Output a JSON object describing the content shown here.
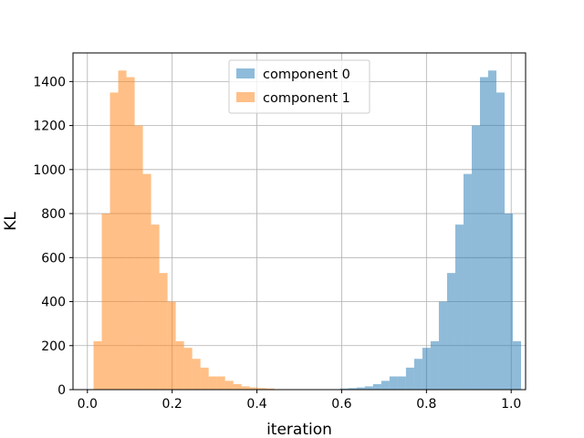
{
  "chart_data": {
    "type": "bar",
    "xlabel": "iteration",
    "ylabel": "KL",
    "xlim": [
      -0.034,
      1.034
    ],
    "ylim": [
      0,
      1530
    ],
    "xticks": [
      0.0,
      0.2,
      0.4,
      0.6,
      0.8,
      1.0
    ],
    "xtick_labels": [
      "0.0",
      "0.2",
      "0.4",
      "0.6",
      "0.8",
      "1.0"
    ],
    "yticks": [
      0,
      200,
      400,
      600,
      800,
      1000,
      1200,
      1400
    ],
    "ytick_labels": [
      "0",
      "200",
      "400",
      "600",
      "800",
      "1000",
      "1200",
      "1400"
    ],
    "grid": true,
    "legend_position": "top-center",
    "bin_start": 0.0145,
    "bin_width": 0.0194,
    "series": [
      {
        "name": "component 0",
        "color": "#1f77b4",
        "alpha": 0.5,
        "values": [
          0,
          0,
          0,
          0,
          0,
          0,
          0,
          0,
          0,
          0,
          0,
          0,
          0,
          0,
          0,
          0,
          0,
          0,
          0,
          0,
          0,
          0,
          0,
          0,
          0,
          0,
          0,
          0,
          0,
          2,
          5,
          7,
          10,
          15,
          25,
          40,
          60,
          60,
          100,
          140,
          190,
          220,
          400,
          530,
          750,
          980,
          1200,
          1420,
          1450,
          1350,
          800,
          220
        ]
      },
      {
        "name": "component 1",
        "color": "#ff7f0e",
        "alpha": 0.5,
        "values": [
          220,
          800,
          1350,
          1450,
          1420,
          1200,
          980,
          750,
          530,
          400,
          220,
          190,
          140,
          100,
          60,
          60,
          40,
          25,
          15,
          10,
          7,
          5,
          2,
          0,
          0,
          0,
          0,
          0,
          0,
          0,
          0,
          0,
          0,
          0,
          0,
          0,
          0,
          0,
          0,
          0,
          0,
          0,
          0,
          0,
          0,
          0,
          0,
          0,
          0,
          0,
          0,
          0
        ]
      }
    ]
  }
}
